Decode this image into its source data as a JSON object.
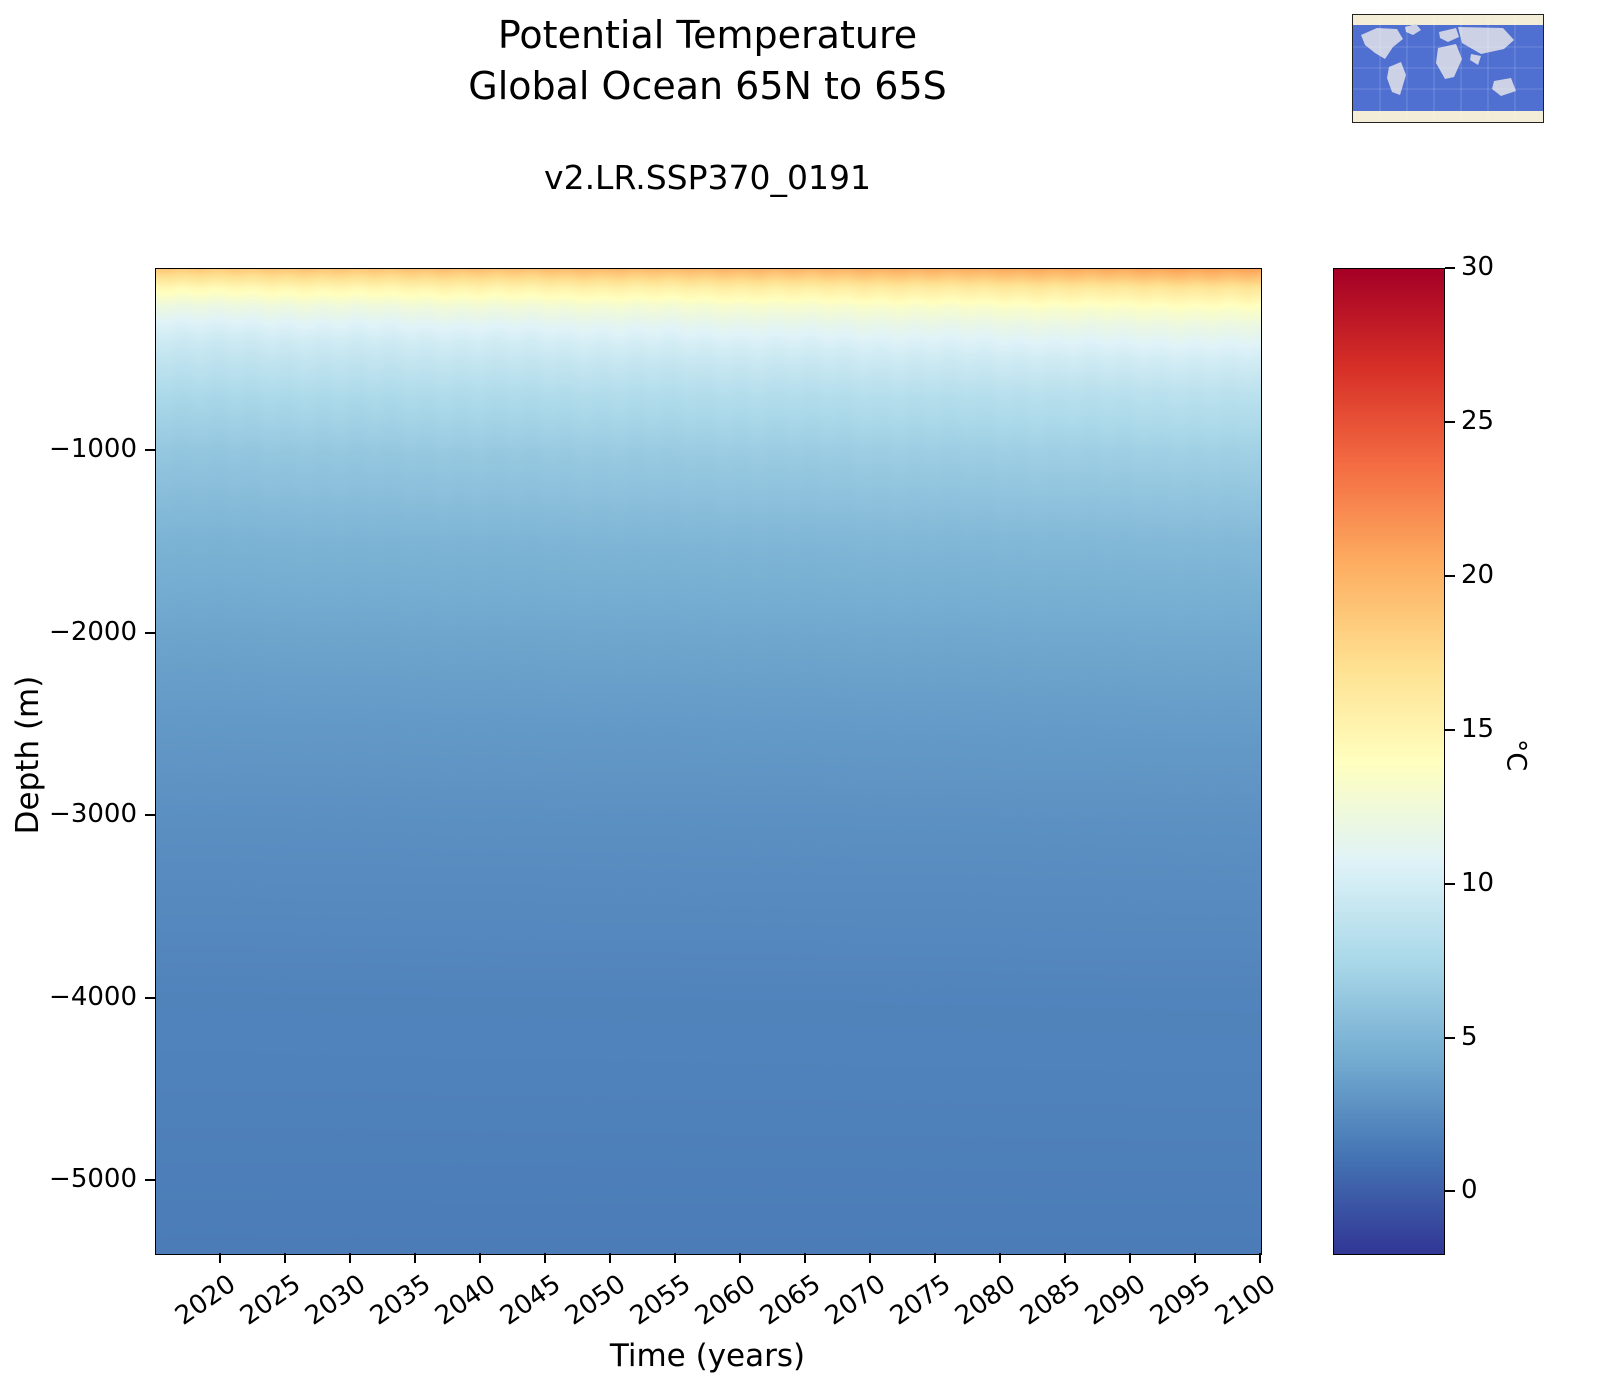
{
  "figure": {
    "title_line1": "Potential Temperature",
    "title_line2": "Global Ocean 65N to 65S",
    "subtitle": "v2.LR.SSP370_0191"
  },
  "chart_data": {
    "type": "heatmap",
    "title": "Potential Temperature - Global Ocean 65N to 65S",
    "subtitle": "v2.LR.SSP370_0191",
    "xlabel": "Time (years)",
    "ylabel": "Depth (m)",
    "x_range": [
      2015,
      2100
    ],
    "x_ticks": [
      2020,
      2025,
      2030,
      2035,
      2040,
      2045,
      2050,
      2055,
      2060,
      2065,
      2070,
      2075,
      2080,
      2085,
      2090,
      2095,
      2100
    ],
    "y_range_m": [
      0,
      -5400
    ],
    "y_ticks_m": [
      -1000,
      -2000,
      -3000,
      -4000,
      -5000
    ],
    "colorbar": {
      "label": "°C",
      "min": -2,
      "max": 30,
      "ticks": [
        0,
        5,
        10,
        15,
        20,
        25,
        30
      ],
      "colormap": "RdYlBu_r",
      "stops": [
        "#313695",
        "#4575b4",
        "#74add1",
        "#abd9e9",
        "#e0f3f8",
        "#ffffbf",
        "#fee090",
        "#fdae61",
        "#f46d43",
        "#d73027",
        "#a50026"
      ]
    },
    "profile": {
      "depths_m": [
        0,
        50,
        100,
        200,
        300,
        400,
        500,
        700,
        1000,
        1500,
        2000,
        2500,
        3000,
        4000,
        5400
      ],
      "temp_2015_c": [
        18.5,
        16.5,
        14.5,
        12.0,
        10.5,
        9.5,
        8.8,
        7.5,
        6.2,
        4.8,
        3.9,
        3.2,
        2.7,
        2.0,
        1.6
      ],
      "temp_2100_c": [
        21.0,
        19.0,
        16.8,
        14.0,
        12.2,
        11.0,
        10.0,
        8.5,
        7.0,
        5.3,
        4.2,
        3.4,
        2.8,
        2.05,
        1.6
      ]
    },
    "map_inset": {
      "region_band": "65N to 65S",
      "ocean_color": "#4f6fd1",
      "land_color": "#ccd1e6",
      "polar_color": "#f3edd8"
    }
  }
}
